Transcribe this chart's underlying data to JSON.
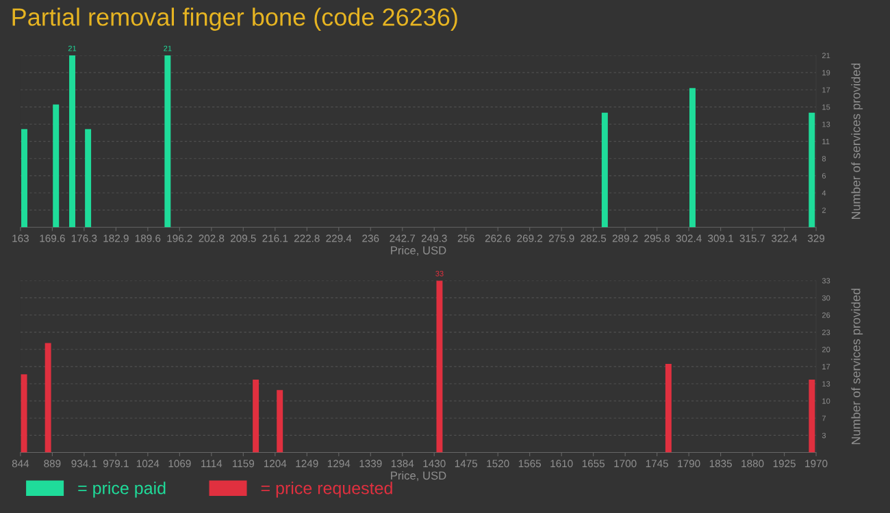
{
  "chart_data": [
    {
      "type": "bar",
      "title": "Partial removal finger bone (code 26236)",
      "xlabel": "Price, USD",
      "ylabel": "Number of services provided",
      "x": [
        163.8,
        170.4,
        173.8,
        177.1,
        193.7,
        284.9,
        303.2,
        328.1
      ],
      "series": [
        {
          "name": "= price paid",
          "color": "#1fdc9a",
          "values": [
            12,
            15,
            21,
            12,
            21,
            14,
            17,
            14
          ],
          "value_labels": [
            null,
            null,
            "21",
            null,
            "21",
            null,
            null,
            null
          ]
        }
      ],
      "xlim": [
        163,
        329
      ],
      "xticks": [
        163,
        {
          "value": 169.64,
          "label": "169.6"
        },
        {
          "value": 176.28,
          "label": "176.3"
        },
        {
          "value": 182.92,
          "label": "182.9"
        },
        {
          "value": 189.56,
          "label": "189.6"
        },
        {
          "value": 196.2,
          "label": "196.2"
        },
        {
          "value": 202.84,
          "label": "202.8"
        },
        {
          "value": 209.48,
          "label": "209.5"
        },
        {
          "value": 216.12,
          "label": "216.1"
        },
        {
          "value": 222.76,
          "label": "222.8"
        },
        {
          "value": 229.4,
          "label": "229.4"
        },
        {
          "value": 236.04,
          "label": "236"
        },
        {
          "value": 242.68,
          "label": "242.7"
        },
        {
          "value": 249.32,
          "label": "249.3"
        },
        {
          "value": 255.96,
          "label": "256"
        },
        {
          "value": 262.6,
          "label": "262.6"
        },
        {
          "value": 269.24,
          "label": "269.2"
        },
        {
          "value": 275.88,
          "label": "275.9"
        },
        {
          "value": 282.52,
          "label": "282.5"
        },
        {
          "value": 289.16,
          "label": "289.2"
        },
        {
          "value": 295.8,
          "label": "295.8"
        },
        {
          "value": 302.44,
          "label": "302.4"
        },
        {
          "value": 309.08,
          "label": "309.1"
        },
        {
          "value": 315.72,
          "label": "315.7"
        },
        {
          "value": 322.36,
          "label": "322.4"
        },
        329
      ],
      "ylim": [
        0,
        21
      ],
      "yticks": [
        {
          "value": 2.1,
          "label": "2"
        },
        {
          "value": 4.2,
          "label": "4"
        },
        {
          "value": 6.3,
          "label": "6"
        },
        {
          "value": 8.4,
          "label": "8"
        },
        {
          "value": 10.5,
          "label": "11"
        },
        {
          "value": 12.6,
          "label": "13"
        },
        {
          "value": 14.7,
          "label": "15"
        },
        {
          "value": 16.8,
          "label": "17"
        },
        {
          "value": 18.9,
          "label": "19"
        },
        21
      ],
      "grid": "y",
      "legend": "bottom left"
    },
    {
      "type": "bar",
      "xlabel": "Price, USD",
      "ylabel": "Number of services provided",
      "x": [
        849,
        883,
        1177,
        1211,
        1437,
        1761,
        1964
      ],
      "series": [
        {
          "name": "= price requested",
          "color": "#e0303f",
          "values": [
            15,
            21,
            14,
            12,
            33,
            17,
            14
          ],
          "value_labels": [
            null,
            null,
            null,
            null,
            "33",
            null,
            null
          ]
        }
      ],
      "xlim": [
        844,
        1970
      ],
      "xticks": [
        844,
        {
          "value": 889.04,
          "label": "889"
        },
        {
          "value": 934.08,
          "label": "934.1"
        },
        {
          "value": 979.12,
          "label": "979.1"
        },
        {
          "value": 1024.16,
          "label": "1024"
        },
        {
          "value": 1069.2,
          "label": "1069"
        },
        {
          "value": 1114.24,
          "label": "1114"
        },
        {
          "value": 1159.28,
          "label": "1159"
        },
        {
          "value": 1204.32,
          "label": "1204"
        },
        {
          "value": 1249.36,
          "label": "1249"
        },
        {
          "value": 1294.4,
          "label": "1294"
        },
        {
          "value": 1339.44,
          "label": "1339"
        },
        {
          "value": 1384.48,
          "label": "1384"
        },
        {
          "value": 1429.52,
          "label": "1430"
        },
        {
          "value": 1474.56,
          "label": "1475"
        },
        {
          "value": 1519.6,
          "label": "1520"
        },
        {
          "value": 1564.64,
          "label": "1565"
        },
        {
          "value": 1609.68,
          "label": "1610"
        },
        {
          "value": 1654.72,
          "label": "1655"
        },
        {
          "value": 1699.76,
          "label": "1700"
        },
        {
          "value": 1744.8,
          "label": "1745"
        },
        {
          "value": 1789.84,
          "label": "1790"
        },
        {
          "value": 1834.88,
          "label": "1835"
        },
        {
          "value": 1879.92,
          "label": "1880"
        },
        {
          "value": 1924.96,
          "label": "1925"
        },
        1970
      ],
      "ylim": [
        0,
        33
      ],
      "yticks": [
        {
          "value": 3.3,
          "label": "3"
        },
        {
          "value": 6.6,
          "label": "7"
        },
        {
          "value": 9.9,
          "label": "10"
        },
        {
          "value": 13.2,
          "label": "13"
        },
        {
          "value": 16.5,
          "label": "17"
        },
        {
          "value": 19.8,
          "label": "20"
        },
        {
          "value": 23.1,
          "label": "23"
        },
        {
          "value": 26.4,
          "label": "26"
        },
        {
          "value": 29.7,
          "label": "30"
        },
        33
      ],
      "grid": "y",
      "legend": "bottom left"
    }
  ]
}
